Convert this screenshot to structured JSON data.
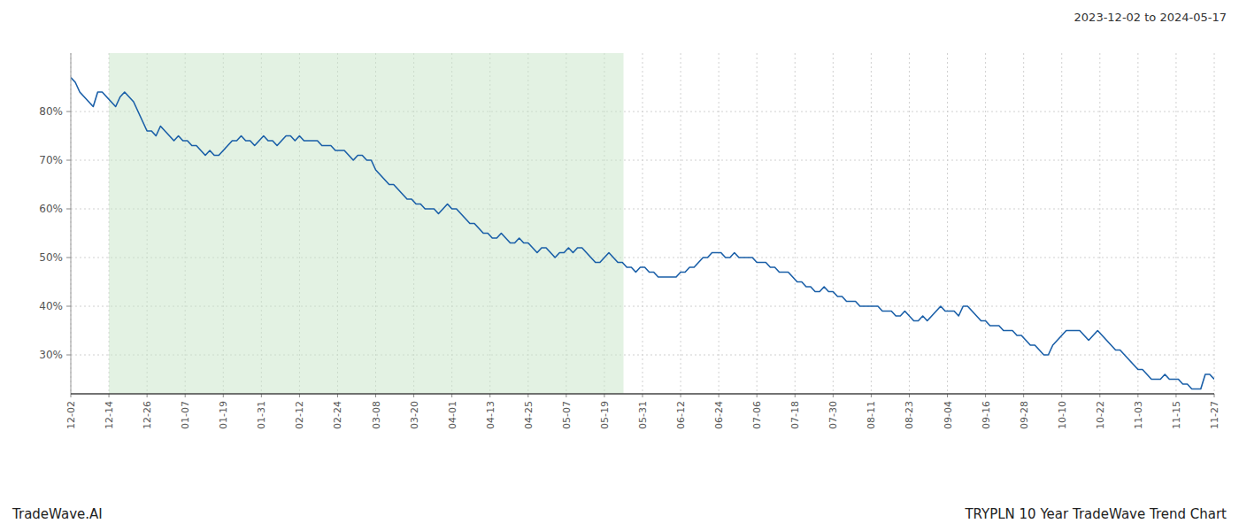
{
  "chart_data": {
    "type": "line",
    "title": "2023-12-02 to 2024-05-17",
    "annotations": [
      "TradeWave.AI",
      "TRYPLN 10 Year TradeWave Trend Chart"
    ],
    "xlim": [
      0,
      30
    ],
    "xticks": [
      {
        "value": 0,
        "label": "12-02"
      },
      {
        "value": 1,
        "label": "12-14"
      },
      {
        "value": 2,
        "label": "12-26"
      },
      {
        "value": 3,
        "label": "01-07"
      },
      {
        "value": 4,
        "label": "01-19"
      },
      {
        "value": 5,
        "label": "01-31"
      },
      {
        "value": 6,
        "label": "02-12"
      },
      {
        "value": 7,
        "label": "02-24"
      },
      {
        "value": 8,
        "label": "03-08"
      },
      {
        "value": 9,
        "label": "03-20"
      },
      {
        "value": 10,
        "label": "04-01"
      },
      {
        "value": 11,
        "label": "04-13"
      },
      {
        "value": 12,
        "label": "04-25"
      },
      {
        "value": 13,
        "label": "05-07"
      },
      {
        "value": 14,
        "label": "05-19"
      },
      {
        "value": 15,
        "label": "05-31"
      },
      {
        "value": 16,
        "label": "06-12"
      },
      {
        "value": 17,
        "label": "06-24"
      },
      {
        "value": 18,
        "label": "07-06"
      },
      {
        "value": 19,
        "label": "07-18"
      },
      {
        "value": 20,
        "label": "07-30"
      },
      {
        "value": 21,
        "label": "08-11"
      },
      {
        "value": 22,
        "label": "08-23"
      },
      {
        "value": 23,
        "label": "09-04"
      },
      {
        "value": 24,
        "label": "09-16"
      },
      {
        "value": 25,
        "label": "09-28"
      },
      {
        "value": 26,
        "label": "10-10"
      },
      {
        "value": 27,
        "label": "10-22"
      },
      {
        "value": 28,
        "label": "11-03"
      },
      {
        "value": 29,
        "label": "11-15"
      },
      {
        "value": 30,
        "label": "11-27"
      }
    ],
    "ylim": [
      22,
      92
    ],
    "yticks": [
      {
        "value": 30,
        "label": "30%"
      },
      {
        "value": 40,
        "label": "40%"
      },
      {
        "value": 50,
        "label": "50%"
      },
      {
        "value": 60,
        "label": "60%"
      },
      {
        "value": 70,
        "label": "70%"
      },
      {
        "value": 80,
        "label": "80%"
      }
    ],
    "grid": true,
    "bands": [
      {
        "start": 1,
        "end": 14.5,
        "color": "#c8e6c8"
      }
    ],
    "series": [
      {
        "color": "#1a5fa8",
        "values": [
          87,
          86,
          84,
          83,
          82,
          81,
          84,
          84,
          83,
          82,
          81,
          83,
          84,
          83,
          82,
          80,
          78,
          76,
          76,
          75,
          77,
          76,
          75,
          74,
          75,
          74,
          74,
          73,
          73,
          72,
          71,
          72,
          71,
          71,
          72,
          73,
          74,
          74,
          75,
          74,
          74,
          73,
          74,
          75,
          74,
          74,
          73,
          74,
          75,
          75,
          74,
          75,
          74,
          74,
          74,
          74,
          73,
          73,
          73,
          72,
          72,
          72,
          71,
          70,
          71,
          71,
          70,
          70,
          68,
          67,
          66,
          65,
          65,
          64,
          63,
          62,
          62,
          61,
          61,
          60,
          60,
          60,
          59,
          60,
          61,
          60,
          60,
          59,
          58,
          57,
          57,
          56,
          55,
          55,
          54,
          54,
          55,
          54,
          53,
          53,
          54,
          53,
          53,
          52,
          51,
          52,
          52,
          51,
          50,
          51,
          51,
          52,
          51,
          52,
          52,
          51,
          50,
          49,
          49,
          50,
          51,
          50,
          49,
          49,
          48,
          48,
          47,
          48,
          48,
          47,
          47,
          46,
          46,
          46,
          46,
          46,
          47,
          47,
          48,
          48,
          49,
          50,
          50,
          51,
          51,
          51,
          50,
          50,
          51,
          50,
          50,
          50,
          50,
          49,
          49,
          49,
          48,
          48,
          47,
          47,
          47,
          46,
          45,
          45,
          44,
          44,
          43,
          43,
          44,
          43,
          43,
          42,
          42,
          41,
          41,
          41,
          40,
          40,
          40,
          40,
          40,
          39,
          39,
          39,
          38,
          38,
          39,
          38,
          37,
          37,
          38,
          37,
          38,
          39,
          40,
          39,
          39,
          39,
          38,
          40,
          40,
          39,
          38,
          37,
          37,
          36,
          36,
          36,
          35,
          35,
          35,
          34,
          34,
          33,
          32,
          32,
          31,
          30,
          30,
          32,
          33,
          34,
          35,
          35,
          35,
          35,
          34,
          33,
          34,
          35,
          34,
          33,
          32,
          31,
          31,
          30,
          29,
          28,
          27,
          27,
          26,
          25,
          25,
          25,
          26,
          25,
          25,
          25,
          24,
          24,
          23,
          23,
          23,
          26,
          26,
          25
        ]
      }
    ]
  }
}
